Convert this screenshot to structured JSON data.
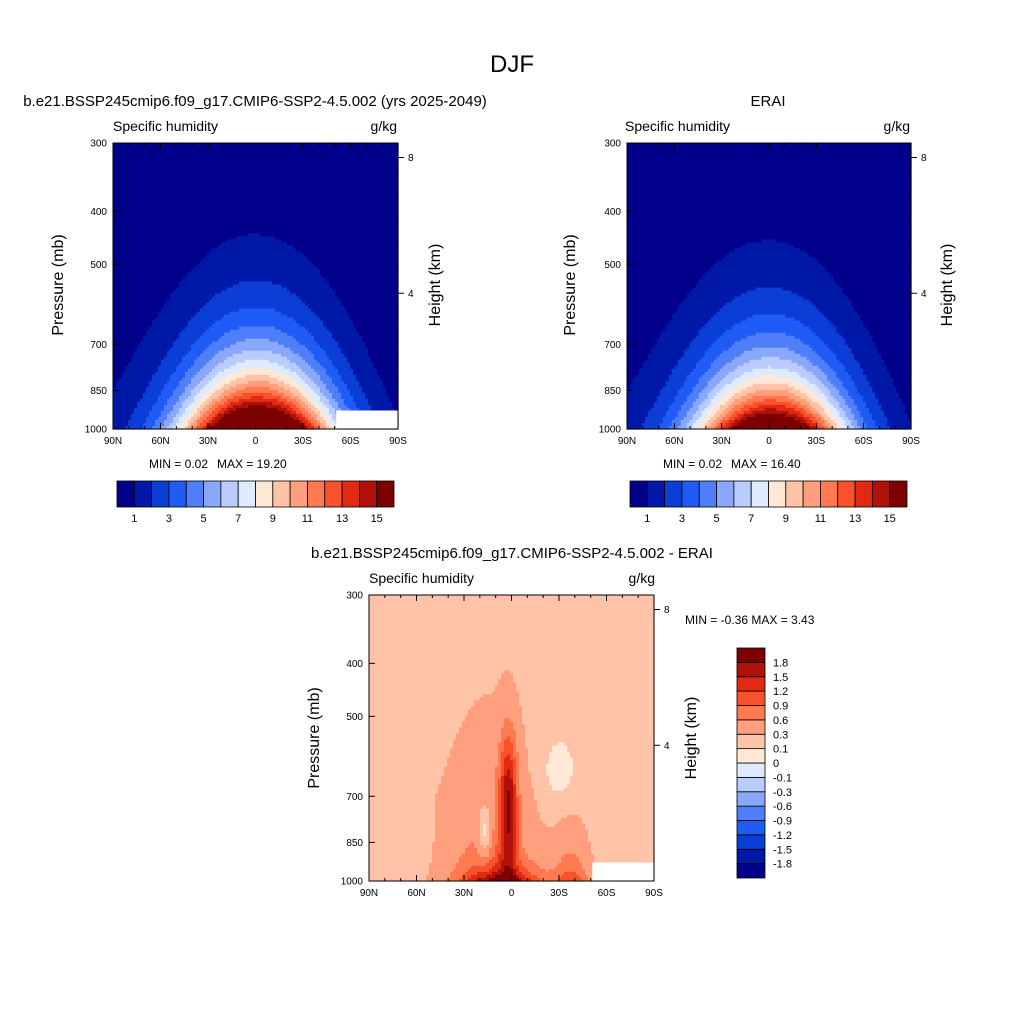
{
  "figure": {
    "title": "DJF"
  },
  "chart_data": [
    {
      "type": "heatmap",
      "title": "b.e21.BSSP245cmip6.f09_g17.CMIP6-SSP2-4.5.002 (yrs 2025-2049)",
      "variable": "Specific humidity",
      "units": "g/kg",
      "ylabel": "Pressure (mb)",
      "y2label": "Height (km)",
      "x_ticks": [
        "90N",
        "60N",
        "30N",
        "0",
        "30S",
        "60S",
        "90S"
      ],
      "x_range": [
        -90,
        90
      ],
      "y_ticks": [
        300,
        400,
        500,
        700,
        850,
        1000
      ],
      "y_range": [
        300,
        1000
      ],
      "y_scale": "log",
      "y2_ticks": [
        8,
        4
      ],
      "stat_min_label": "MIN =   0.02",
      "stat_max_label": "MAX =  19.20",
      "min": 0.02,
      "max": 19.2,
      "surface_peak": 19.2,
      "peak_lat": 2,
      "colorbar": {
        "orientation": "horizontal",
        "levels": [
          1,
          2,
          3,
          4,
          5,
          6,
          7,
          8,
          9,
          10,
          11,
          12,
          13,
          14,
          15
        ],
        "labels": [
          "1",
          "3",
          "5",
          "7",
          "9",
          "11",
          "13",
          "15"
        ],
        "colors": [
          "#00008b",
          "#0018a8",
          "#0a3ed6",
          "#1f5bf5",
          "#4f7ff8",
          "#89a8fb",
          "#b9ccfd",
          "#deebff",
          "#ffe8d6",
          "#ffc4a8",
          "#ff9f7d",
          "#ff7a50",
          "#f8522d",
          "#e02a14",
          "#b2110a",
          "#7d0000"
        ]
      }
    },
    {
      "type": "heatmap",
      "title": "ERAI",
      "variable": "Specific humidity",
      "units": "g/kg",
      "ylabel": "Pressure (mb)",
      "y2label": "Height (km)",
      "x_ticks": [
        "90N",
        "60N",
        "30N",
        "0",
        "30S",
        "60S",
        "90S"
      ],
      "x_range": [
        -90,
        90
      ],
      "y_ticks": [
        300,
        400,
        500,
        700,
        850,
        1000
      ],
      "y_range": [
        300,
        1000
      ],
      "y_scale": "log",
      "y2_ticks": [
        8,
        4
      ],
      "stat_min_label": "MIN =   0.02",
      "stat_max_label": "MAX =  16.40",
      "min": 0.02,
      "max": 16.4,
      "surface_peak": 16.4,
      "peak_lat": 2,
      "colorbar": {
        "orientation": "horizontal",
        "levels": [
          1,
          2,
          3,
          4,
          5,
          6,
          7,
          8,
          9,
          10,
          11,
          12,
          13,
          14,
          15
        ],
        "labels": [
          "1",
          "3",
          "5",
          "7",
          "9",
          "11",
          "13",
          "15"
        ],
        "colors": [
          "#00008b",
          "#0018a8",
          "#0a3ed6",
          "#1f5bf5",
          "#4f7ff8",
          "#89a8fb",
          "#b9ccfd",
          "#deebff",
          "#ffe8d6",
          "#ffc4a8",
          "#ff9f7d",
          "#ff7a50",
          "#f8522d",
          "#e02a14",
          "#b2110a",
          "#7d0000"
        ]
      }
    },
    {
      "type": "heatmap",
      "title": "b.e21.BSSP245cmip6.f09_g17.CMIP6-SSP2-4.5.002 - ERAI",
      "variable": "Specific humidity",
      "units": "g/kg",
      "ylabel": "Pressure (mb)",
      "y2label": "Height (km)",
      "x_ticks": [
        "90N",
        "60N",
        "30N",
        "0",
        "30S",
        "60S",
        "90S"
      ],
      "x_range": [
        -90,
        90
      ],
      "y_ticks": [
        300,
        400,
        500,
        700,
        850,
        1000
      ],
      "y_range": [
        300,
        1000
      ],
      "y_scale": "log",
      "y2_ticks": [
        8,
        4
      ],
      "stat_label": "MIN =  -0.36  MAX =   3.43",
      "min": -0.36,
      "max": 3.43,
      "colorbar": {
        "orientation": "vertical",
        "levels": [
          -1.8,
          -1.5,
          -1.2,
          -0.9,
          -0.6,
          -0.3,
          -0.1,
          0,
          0.1,
          0.3,
          0.6,
          0.9,
          1.2,
          1.5,
          1.8
        ],
        "labels": [
          "-1.8",
          "-1.5",
          "-1.2",
          "-0.9",
          "-0.6",
          "-0.3",
          "-0.1",
          "0",
          "0.1",
          "0.3",
          "0.6",
          "0.9",
          "1.2",
          "1.5",
          "1.8"
        ],
        "colors": [
          "#00008b",
          "#0018a8",
          "#0a3ed6",
          "#1f5bf5",
          "#4f7ff8",
          "#89a8fb",
          "#b9ccfd",
          "#deebff",
          "#ffe8d6",
          "#ffc4a8",
          "#ff9f7d",
          "#ff7a50",
          "#f8522d",
          "#e02a14",
          "#b2110a",
          "#7d0000"
        ]
      }
    }
  ]
}
